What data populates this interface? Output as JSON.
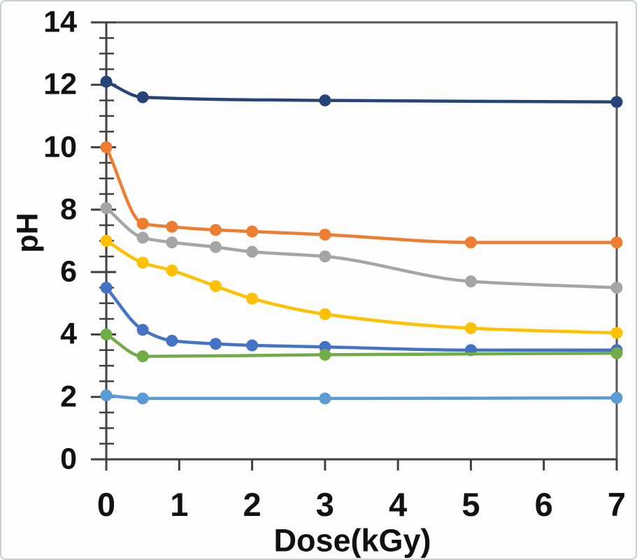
{
  "figure": {
    "background": "#fdfdfd",
    "frame_border_color": "#c9cdd1"
  },
  "chart_data": {
    "type": "line",
    "title": "",
    "xlabel": "Dose(kGy)",
    "ylabel": "pH",
    "xlim": [
      0,
      7
    ],
    "ylim": [
      0,
      14
    ],
    "grid": "off",
    "legend": "none",
    "smooth_lines": true,
    "marker_shape": "circle",
    "x_tick_labels": [
      "0",
      "1",
      "2",
      "3",
      "4",
      "5",
      "6",
      "7"
    ],
    "x_tick_values": [
      0,
      1,
      2,
      3,
      4,
      5,
      6,
      7
    ],
    "y_tick_labels": [
      "0",
      "2",
      "4",
      "6",
      "8",
      "10",
      "12",
      "14"
    ],
    "y_tick_values": [
      0,
      2,
      4,
      6,
      8,
      10,
      12,
      14
    ],
    "y_minor_tick_step": 0.5,
    "axis_color": "#404040",
    "plot_border_color": "#595959",
    "series": [
      {
        "name": "dark-blue",
        "color": "#264478",
        "x": [
          0,
          0.5,
          3,
          7
        ],
        "y": [
          12.1,
          11.6,
          11.5,
          11.45
        ]
      },
      {
        "name": "orange",
        "color": "#ED7D31",
        "x": [
          0,
          0.5,
          0.9,
          1.5,
          2,
          3,
          5,
          7
        ],
        "y": [
          10.0,
          7.55,
          7.45,
          7.35,
          7.3,
          7.2,
          6.95,
          6.95
        ]
      },
      {
        "name": "gray",
        "color": "#A5A5A5",
        "x": [
          0,
          0.5,
          0.9,
          1.5,
          2,
          3,
          5,
          7
        ],
        "y": [
          8.05,
          7.1,
          6.95,
          6.8,
          6.65,
          6.5,
          5.7,
          5.5
        ]
      },
      {
        "name": "yellow",
        "color": "#FFC000",
        "x": [
          0,
          0.5,
          0.9,
          1.5,
          2,
          3,
          5,
          7
        ],
        "y": [
          7.0,
          6.3,
          6.05,
          5.55,
          5.15,
          4.65,
          4.2,
          4.05
        ]
      },
      {
        "name": "blue",
        "color": "#4472C4",
        "x": [
          0,
          0.5,
          0.9,
          1.5,
          2,
          3,
          5,
          7
        ],
        "y": [
          5.5,
          4.15,
          3.8,
          3.7,
          3.65,
          3.6,
          3.5,
          3.5
        ]
      },
      {
        "name": "green",
        "color": "#70AD47",
        "x": [
          0,
          0.5,
          3,
          7
        ],
        "y": [
          4.0,
          3.3,
          3.35,
          3.4
        ]
      },
      {
        "name": "light-blue",
        "color": "#5B9BD5",
        "x": [
          0,
          0.5,
          3,
          7
        ],
        "y": [
          2.05,
          1.95,
          1.95,
          1.97
        ]
      }
    ]
  }
}
